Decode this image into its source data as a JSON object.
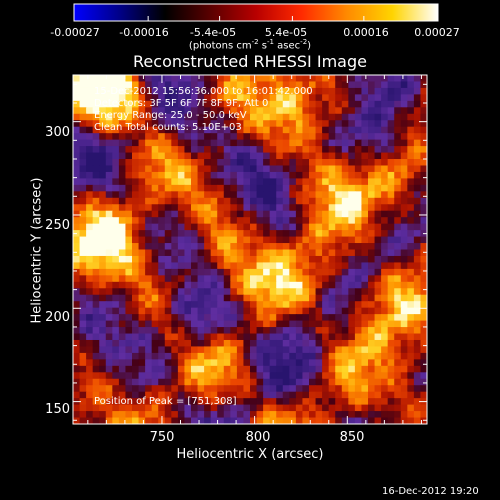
{
  "colorbar": {
    "tick_labels": [
      "-0.00027",
      "-0.00016",
      "-5.4e-05",
      "5.4e-05",
      "0.00016",
      "0.00027"
    ],
    "tick_values": [
      -0.00027,
      -0.00016,
      -5.4e-05,
      5.4e-05,
      0.00016,
      0.00027
    ],
    "units_prefix": "(photons cm",
    "units_exp1": "-2",
    "units_mid": " s",
    "units_exp2": "-1",
    "units_mid2": " asec",
    "units_exp3": "-2",
    "units_suffix": ")",
    "stops": [
      "#0000ff",
      "#000088",
      "#000000",
      "#5a0000",
      "#b80000",
      "#ff2a00",
      "#ff8a00",
      "#ffd400",
      "#ffffff"
    ]
  },
  "chart_data": {
    "type": "heatmap",
    "title": "Reconstructed RHESSI Image",
    "xlabel": "Heliocentric X (arcsec)",
    "ylabel": "Heliocentric Y (arcsec)",
    "xlim": [
      702,
      893
    ],
    "ylim": [
      138,
      325
    ],
    "xticks": [
      750,
      800,
      850
    ],
    "yticks": [
      150,
      200,
      250,
      300
    ],
    "annotation_lines": [
      "15-Dec-2012 15:56:36.000 to 16:01:42.000",
      "Detectors: 3F 5F 6F 7F 8F 9F, Att 0",
      "Energy Range: 25.0 - 50.0 keV",
      "Clean    Total counts: 5.10E+03"
    ],
    "peak_label": "Position of Peak = [751,308]",
    "peak": [
      751,
      308
    ]
  },
  "footer": {
    "timestamp": "16-Dec-2012 19:20"
  }
}
